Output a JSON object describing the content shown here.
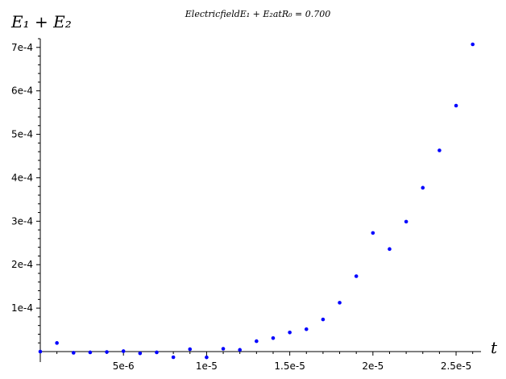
{
  "chart_data": {
    "type": "scatter",
    "title": "Electric field E_1 + E_2 at R_0 = 0.700",
    "title_display": "ElectricfieldE₁ + E₂atR₀ = 0.700",
    "xlabel": "t",
    "ylabel": "E_1 + E_2",
    "ylabel_display": "E₁ + E₂",
    "color": "#0000ff",
    "grid": false,
    "xlim": [
      0,
      2.65e-05
    ],
    "ylim": [
      0,
      0.00072
    ],
    "x_ticks": [
      5e-06,
      1e-05,
      1.5e-05,
      2e-05,
      2.5e-05
    ],
    "x_tick_labels": [
      "5e-6",
      "1e-5",
      "1.5e-5",
      "2e-5",
      "2.5e-5"
    ],
    "y_ticks": [
      0.0001,
      0.0002,
      0.0003,
      0.0004,
      0.0005,
      0.0006,
      0.0007
    ],
    "y_tick_labels": [
      "1e-4",
      "2e-4",
      "3e-4",
      "4e-4",
      "5e-4",
      "6e-4",
      "7e-4"
    ],
    "points": [
      {
        "x": 0.0,
        "y": 0.0
      },
      {
        "x": 1e-06,
        "y": 1.98e-05
      },
      {
        "x": 2e-06,
        "y": -2.7e-06
      },
      {
        "x": 3e-06,
        "y": -1.8e-06
      },
      {
        "x": 4e-06,
        "y": -1e-06
      },
      {
        "x": 5e-06,
        "y": 1e-06
      },
      {
        "x": 6e-06,
        "y": -4e-06
      },
      {
        "x": 7e-06,
        "y": -1.8e-06
      },
      {
        "x": 8e-06,
        "y": -1.3e-05
      },
      {
        "x": 9e-06,
        "y": 5.5e-06
      },
      {
        "x": 1e-05,
        "y": -1.33e-05
      },
      {
        "x": 1.1e-05,
        "y": 6.5e-06
      },
      {
        "x": 1.2e-05,
        "y": 4e-06
      },
      {
        "x": 1.3e-05,
        "y": 2.4e-05
      },
      {
        "x": 1.4e-05,
        "y": 3.1e-05
      },
      {
        "x": 1.5e-05,
        "y": 4.4e-05
      },
      {
        "x": 1.6e-05,
        "y": 5.15e-05
      },
      {
        "x": 1.7e-05,
        "y": 7.4e-05
      },
      {
        "x": 1.8e-05,
        "y": 0.0001125
      },
      {
        "x": 1.9e-05,
        "y": 0.0001735
      },
      {
        "x": 2e-05,
        "y": 0.000273
      },
      {
        "x": 2.1e-05,
        "y": 0.000236
      },
      {
        "x": 2.2e-05,
        "y": 0.000299
      },
      {
        "x": 2.3e-05,
        "y": 0.000377
      },
      {
        "x": 2.4e-05,
        "y": 0.000463
      },
      {
        "x": 2.5e-05,
        "y": 0.000566
      },
      {
        "x": 2.6e-05,
        "y": 0.000707
      }
    ]
  }
}
